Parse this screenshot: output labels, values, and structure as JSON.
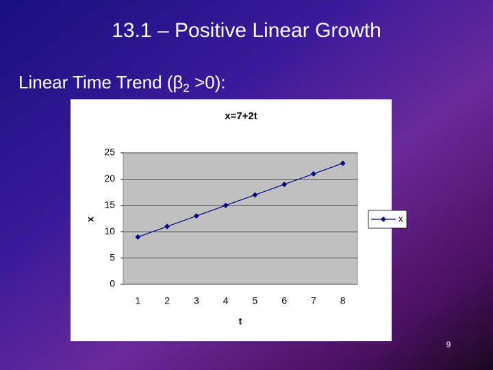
{
  "slide": {
    "title": "13.1 – Positive Linear Growth",
    "subtitle": [
      "Linear Time Trend (β",
      "2",
      " >0):"
    ],
    "page_number": "9"
  },
  "chart_data": {
    "type": "line",
    "title": "x=7+2t",
    "x_label": "t",
    "y_label": "x",
    "categories": [
      "1",
      "2",
      "3",
      "4",
      "5",
      "6",
      "7",
      "8"
    ],
    "series": [
      {
        "name": "x",
        "color": "#000080",
        "values": [
          9,
          11,
          13,
          15,
          17,
          19,
          21,
          23
        ]
      }
    ],
    "ylim": [
      0,
      25
    ],
    "yticks": [
      0,
      5,
      10,
      15,
      20,
      25
    ],
    "grid": true,
    "legend": "right"
  }
}
